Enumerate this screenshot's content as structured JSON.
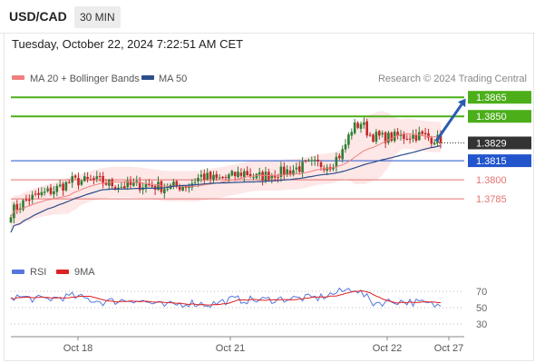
{
  "header": {
    "symbol": "USD/CAD",
    "timeframe": "30 MIN",
    "datetime": "Tuesday, October 22, 2024 7:22:51 AM CET"
  },
  "legend": {
    "ma20": "MA 20 + Bollinger Bands",
    "ma50": "MA 50",
    "credit": "Research © 2024 Trading Central",
    "rsi": "RSI",
    "rsi_ma": "9MA"
  },
  "colors": {
    "up": "#2e7d32",
    "down": "#c62828",
    "resistance": "#4caf1a",
    "support_blue": "#2255cc",
    "support_red": "#e57373",
    "current": "#333333",
    "arrow": "#2a5db0",
    "ma20": "#f08080",
    "ma50": "#2b4f8a",
    "band_fill": "#fde3e3",
    "rsi": "#5577dd",
    "rsi_ma": "#dd2222"
  },
  "chart_data": [
    {
      "type": "candlestick",
      "title": "",
      "x_labels": [
        "Oct 18",
        "Oct 21",
        "Oct 22",
        "Oct 27"
      ],
      "ylim": [
        1.3745,
        1.3873
      ],
      "levels": [
        {
          "value": 1.3865,
          "label": "1.3865",
          "kind": "resistance"
        },
        {
          "value": 1.385,
          "label": "1.3850",
          "kind": "resistance"
        },
        {
          "value": 1.3829,
          "label": "1.3829",
          "kind": "current"
        },
        {
          "value": 1.3815,
          "label": "1.3815",
          "kind": "support-blue"
        },
        {
          "value": 1.38,
          "label": "1.3800",
          "kind": "support-red"
        },
        {
          "value": 1.3785,
          "label": "1.3785",
          "kind": "support-red"
        }
      ],
      "close_keypoints": [
        [
          0,
          1.3775
        ],
        [
          6,
          1.3785
        ],
        [
          14,
          1.3792
        ],
        [
          20,
          1.3799
        ],
        [
          28,
          1.3799
        ],
        [
          36,
          1.3795
        ],
        [
          44,
          1.3796
        ],
        [
          50,
          1.3794
        ],
        [
          55,
          1.3795
        ],
        [
          58,
          1.3796
        ],
        [
          62,
          1.3803
        ],
        [
          67,
          1.38
        ],
        [
          72,
          1.3803
        ],
        [
          76,
          1.3806
        ],
        [
          80,
          1.3802
        ],
        [
          86,
          1.3805
        ],
        [
          92,
          1.3808
        ],
        [
          97,
          1.3812
        ],
        [
          104,
          1.3812
        ],
        [
          108,
          1.3822
        ],
        [
          111,
          1.384
        ],
        [
          114,
          1.3845
        ],
        [
          117,
          1.3835
        ],
        [
          121,
          1.3833
        ],
        [
          126,
          1.3834
        ],
        [
          133,
          1.3835
        ],
        [
          138,
          1.3832
        ],
        [
          140,
          1.3831
        ]
      ],
      "candle_count": 141,
      "projection": {
        "from": 1.3829,
        "to": 1.3865
      }
    },
    {
      "type": "line",
      "title": "RSI",
      "ylim": [
        20,
        80
      ],
      "y_ticks": [
        70,
        50,
        30
      ],
      "rsi_keypoints": [
        [
          0,
          64
        ],
        [
          10,
          60
        ],
        [
          20,
          64
        ],
        [
          30,
          57
        ],
        [
          40,
          60
        ],
        [
          50,
          52
        ],
        [
          58,
          56
        ],
        [
          65,
          54
        ],
        [
          72,
          60
        ],
        [
          80,
          59
        ],
        [
          90,
          61
        ],
        [
          100,
          62
        ],
        [
          108,
          70
        ],
        [
          112,
          74
        ],
        [
          118,
          56
        ],
        [
          126,
          58
        ],
        [
          133,
          56
        ],
        [
          140,
          52
        ]
      ]
    }
  ]
}
